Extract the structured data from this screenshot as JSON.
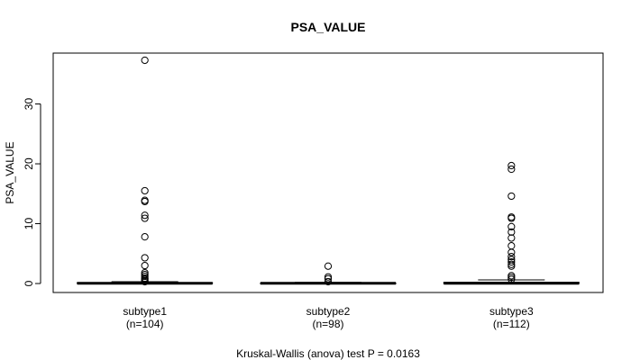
{
  "chart_data": {
    "type": "box",
    "title": "PSA_VALUE",
    "ylabel": "PSA_VALUE",
    "xlabel": "",
    "footnote": "Kruskal-Wallis (anova) test P = 0.0163",
    "ylim": [
      -1.5,
      38.5
    ],
    "yticks": [
      0,
      10,
      20,
      30
    ],
    "groups": [
      {
        "name": "subtype1",
        "n_label": "(n=104)",
        "q1": 0.0,
        "median": 0.05,
        "q3": 0.15,
        "whisker_low": 0.0,
        "whisker_high": 0.3,
        "outliers": [
          37.3,
          15.5,
          13.9,
          13.7,
          11.4,
          10.9,
          7.8,
          4.3,
          3.0,
          1.8,
          1.5,
          1.2,
          0.9,
          0.7,
          0.5,
          0.3
        ]
      },
      {
        "name": "subtype2",
        "n_label": "(n=98)",
        "q1": 0.0,
        "median": 0.05,
        "q3": 0.1,
        "whisker_low": 0.0,
        "whisker_high": 0.2,
        "outliers": [
          2.9,
          1.1,
          0.8,
          0.3
        ]
      },
      {
        "name": "subtype3",
        "n_label": "(n=112)",
        "q1": 0.0,
        "median": 0.05,
        "q3": 0.2,
        "whisker_low": 0.0,
        "whisker_high": 0.6,
        "outliers": [
          19.7,
          19.1,
          14.6,
          11.1,
          10.9,
          9.5,
          8.6,
          7.6,
          6.3,
          5.2,
          4.5,
          4.0,
          3.6,
          3.2,
          2.9,
          1.3,
          1.0,
          0.7
        ]
      }
    ]
  }
}
